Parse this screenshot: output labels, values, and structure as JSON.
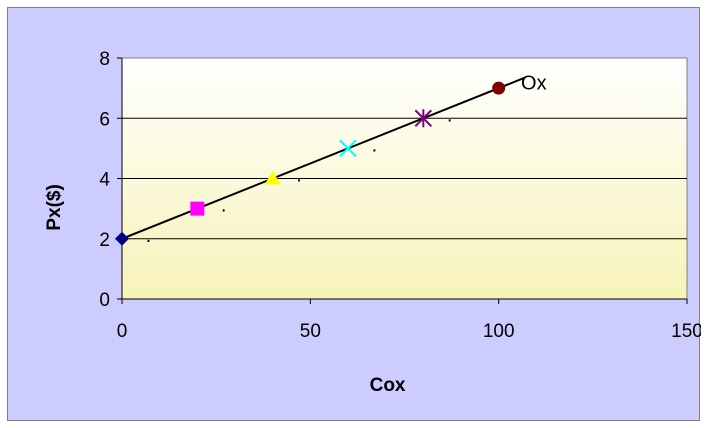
{
  "chart_data": {
    "type": "scatter",
    "title": "",
    "xlabel": "Cox",
    "ylabel": "Px($)",
    "xlim": [
      0,
      150
    ],
    "ylim": [
      0,
      8
    ],
    "x_ticks": [
      0,
      50,
      100,
      150
    ],
    "y_ticks": [
      0,
      2,
      4,
      6,
      8
    ],
    "grid": "horizontal",
    "legend": "none",
    "plot_background": [
      "#ffffff",
      "#f7f3b8"
    ],
    "points": [
      {
        "x": 0,
        "y": 2,
        "marker": "diamond",
        "color": "#000080"
      },
      {
        "x": 20,
        "y": 3,
        "marker": "square",
        "color": "#ff00ff"
      },
      {
        "x": 40,
        "y": 4,
        "marker": "triangle",
        "color": "#ffff00"
      },
      {
        "x": 60,
        "y": 5,
        "marker": "x",
        "color": "#00ffff"
      },
      {
        "x": 80,
        "y": 6,
        "marker": "star",
        "color": "#800080"
      },
      {
        "x": 100,
        "y": 7,
        "marker": "circle",
        "color": "#800000"
      }
    ],
    "line": {
      "x0": 0,
      "y0": 2,
      "x1": 107,
      "y1": 7.35,
      "color": "#000000"
    },
    "line_label": "Ox",
    "point_annotations": [
      {
        "x": 7,
        "y": 1.9,
        "text": "."
      },
      {
        "x": 27,
        "y": 2.9,
        "text": "."
      },
      {
        "x": 47,
        "y": 3.9,
        "text": "."
      },
      {
        "x": 67,
        "y": 4.9,
        "text": "."
      },
      {
        "x": 87,
        "y": 5.9,
        "text": "."
      }
    ]
  }
}
